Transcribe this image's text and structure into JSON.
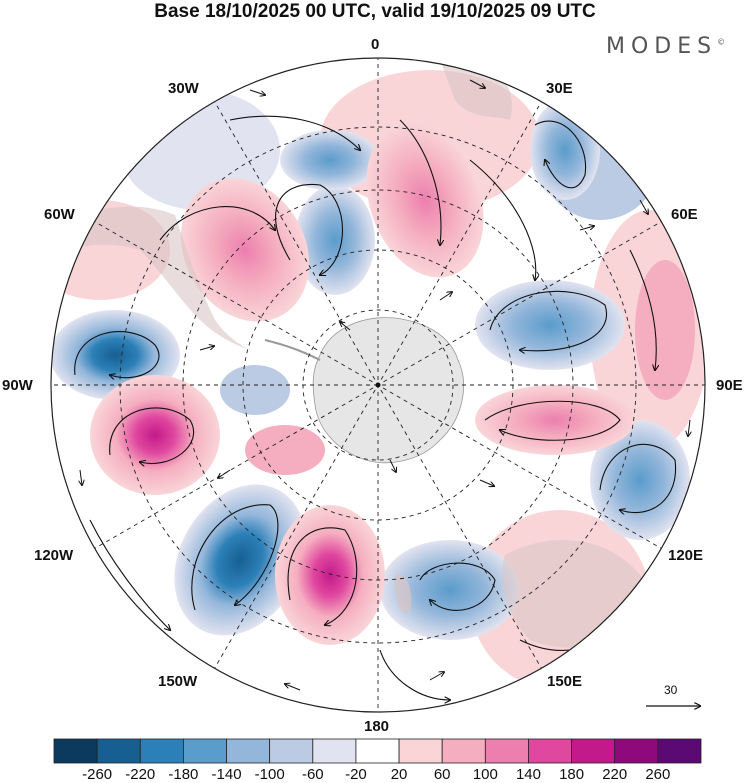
{
  "title": "Base 18/10/2025 00 UTC, valid 19/10/2025 09 UTC",
  "brand": "MODES",
  "brand_mark": "©",
  "longitude_labels": [
    "0",
    "30E",
    "60E",
    "90E",
    "120E",
    "150E",
    "180",
    "150W",
    "120W",
    "90W",
    "60W",
    "30W"
  ],
  "vector_scale_label": "30",
  "colorbar": {
    "labels": [
      "-260",
      "-220",
      "-180",
      "-140",
      "-100",
      "-60",
      "-20",
      "20",
      "60",
      "100",
      "140",
      "180",
      "220",
      "260"
    ],
    "colors": [
      "#0b3a5e",
      "#175f93",
      "#2c80b8",
      "#5a9ccb",
      "#93b6da",
      "#bccbe4",
      "#e2e3f0",
      "#ffffff",
      "#f9d5d8",
      "#f5aebf",
      "#ec7fae",
      "#e0479f",
      "#c21a8a",
      "#8e0a7c",
      "#5a0a72"
    ]
  },
  "colors": {
    "antarctica": "#e6e6e6",
    "land": "#d9c4c4",
    "map_border": "#222222"
  }
}
